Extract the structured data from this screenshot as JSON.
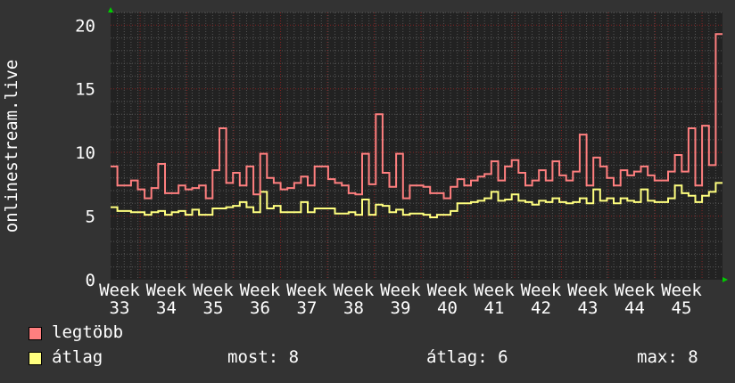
{
  "chart_data": {
    "type": "line",
    "ylabel": "onlinestream.live",
    "xlabel": "",
    "ylim": [
      0,
      21
    ],
    "yticks": [
      "0",
      "5",
      "10",
      "15",
      "20"
    ],
    "xticks": [
      "Week 33",
      "Week 34",
      "Week 35",
      "Week 36",
      "Week 37",
      "Week 38",
      "Week 39",
      "Week 40",
      "Week 41",
      "Week 42",
      "Week 43",
      "Week 44",
      "Week 45"
    ],
    "grid": true,
    "step": true,
    "series": [
      {
        "name": "legtöbb",
        "color": "#ff7f7f",
        "values": [
          8.9,
          7.4,
          7.4,
          7.8,
          7.1,
          6.4,
          7.2,
          9.1,
          6.8,
          6.8,
          7.4,
          7.1,
          7.2,
          7.4,
          6.4,
          8.6,
          11.9,
          7.6,
          8.4,
          7.4,
          8.9,
          6.7,
          9.9,
          8.0,
          7.6,
          7.1,
          7.2,
          7.6,
          8.1,
          7.4,
          8.9,
          8.9,
          7.9,
          7.6,
          7.4,
          6.8,
          6.7,
          9.9,
          7.5,
          13.0,
          8.4,
          7.3,
          9.9,
          6.4,
          7.4,
          7.4,
          7.3,
          6.8,
          6.8,
          6.4,
          7.3,
          7.9,
          7.4,
          7.8,
          8.1,
          8.3,
          9.3,
          7.8,
          8.9,
          9.4,
          8.4,
          7.4,
          7.8,
          8.6,
          7.8,
          9.3,
          8.2,
          7.8,
          8.5,
          11.4,
          7.4,
          9.6,
          8.9,
          8.0,
          7.4,
          8.6,
          8.2,
          8.5,
          8.9,
          8.2,
          7.8,
          7.8,
          8.5,
          9.8,
          8.5,
          11.9,
          7.4,
          12.1,
          9.0,
          19.3
        ]
      },
      {
        "name": "átlag",
        "color": "#ffff7f",
        "values": [
          5.7,
          5.4,
          5.4,
          5.3,
          5.3,
          5.1,
          5.3,
          5.4,
          5.1,
          5.3,
          5.4,
          5.1,
          5.5,
          5.1,
          5.1,
          5.6,
          5.6,
          5.7,
          5.8,
          6.1,
          5.7,
          5.3,
          6.9,
          5.6,
          5.8,
          5.3,
          5.3,
          5.3,
          6.1,
          5.3,
          5.6,
          5.6,
          5.6,
          5.2,
          5.2,
          5.3,
          5.1,
          6.3,
          5.1,
          5.9,
          5.8,
          5.3,
          5.5,
          5.1,
          5.2,
          5.2,
          5.1,
          4.9,
          5.1,
          5.1,
          5.4,
          6.0,
          6.0,
          6.1,
          6.2,
          6.4,
          6.9,
          6.2,
          6.3,
          6.7,
          6.2,
          6.1,
          5.9,
          6.2,
          6.1,
          6.4,
          6.1,
          6.0,
          6.1,
          6.4,
          6.0,
          7.1,
          6.2,
          6.4,
          6.0,
          6.4,
          6.2,
          6.1,
          7.1,
          6.2,
          6.1,
          6.1,
          6.4,
          7.4,
          6.8,
          6.6,
          6.1,
          6.6,
          6.9,
          7.6
        ]
      }
    ]
  },
  "legend": {
    "max_label": "legtöbb",
    "avg_label": "átlag",
    "stats": {
      "most": "most: 8",
      "atlag": "átlag: 6",
      "max": "max: 8"
    }
  },
  "colors": {
    "background": "#333333",
    "plot_background": "#222222",
    "major_grid": "#802020",
    "minor_grid": "#555555",
    "arrow": "#00cc00"
  }
}
